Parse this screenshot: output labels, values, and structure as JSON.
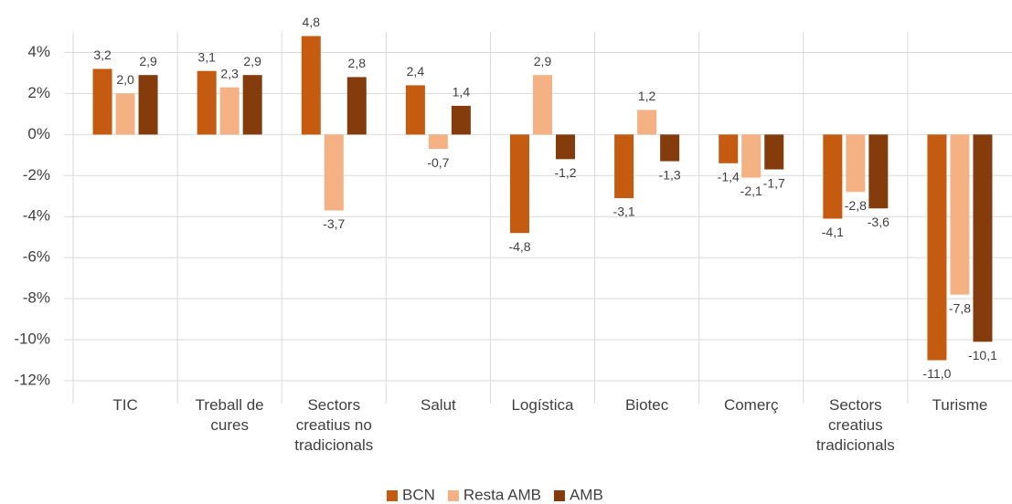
{
  "chart_data": {
    "type": "bar",
    "categories": [
      "TIC",
      "Treball de cures",
      "Sectors creatius no tradicionals",
      "Salut",
      "Logística",
      "Biotec",
      "Comerç",
      "Sectors creatius tradicionals",
      "Turisme"
    ],
    "series": [
      {
        "name": "BCN",
        "color": "#c55a11",
        "values": [
          3.2,
          3.1,
          4.8,
          2.4,
          -4.8,
          -3.1,
          -1.4,
          -4.1,
          -11.0
        ],
        "value_labels": [
          "3,2",
          "3,1",
          "4,8",
          "2,4",
          "-4,8",
          "-3,1",
          "-1,4",
          "-4,1",
          "-11,0"
        ]
      },
      {
        "name": "Resta AMB",
        "color": "#f4b183",
        "values": [
          2.0,
          2.3,
          -3.7,
          -0.7,
          2.9,
          1.2,
          -2.1,
          -2.8,
          -7.8
        ],
        "value_labels": [
          "2,0",
          "2,3",
          "-3,7",
          "-0,7",
          "2,9",
          "1,2",
          "-2,1",
          "-2,8",
          "-7,8"
        ]
      },
      {
        "name": "AMB",
        "color": "#843c0c",
        "values": [
          2.9,
          2.9,
          2.8,
          1.4,
          -1.2,
          -1.3,
          -1.7,
          -3.6,
          -10.1
        ],
        "value_labels": [
          "2,9",
          "2,9",
          "2,8",
          "1,4",
          "-1,2",
          "-1,3",
          "-1,7",
          "-3,6",
          "-10,1"
        ]
      }
    ],
    "ylim": [
      -12,
      5
    ],
    "yticks": [
      {
        "value": -12,
        "label": "-12%"
      },
      {
        "value": -10,
        "label": "-10%"
      },
      {
        "value": -8,
        "label": "-8%"
      },
      {
        "value": -6,
        "label": "-6%"
      },
      {
        "value": -4,
        "label": "-4%"
      },
      {
        "value": -2,
        "label": "-2%"
      },
      {
        "value": 0,
        "label": "0%"
      },
      {
        "value": 2,
        "label": "2%"
      },
      {
        "value": 4,
        "label": "4%"
      }
    ],
    "grid": true,
    "legend": "bottom"
  }
}
